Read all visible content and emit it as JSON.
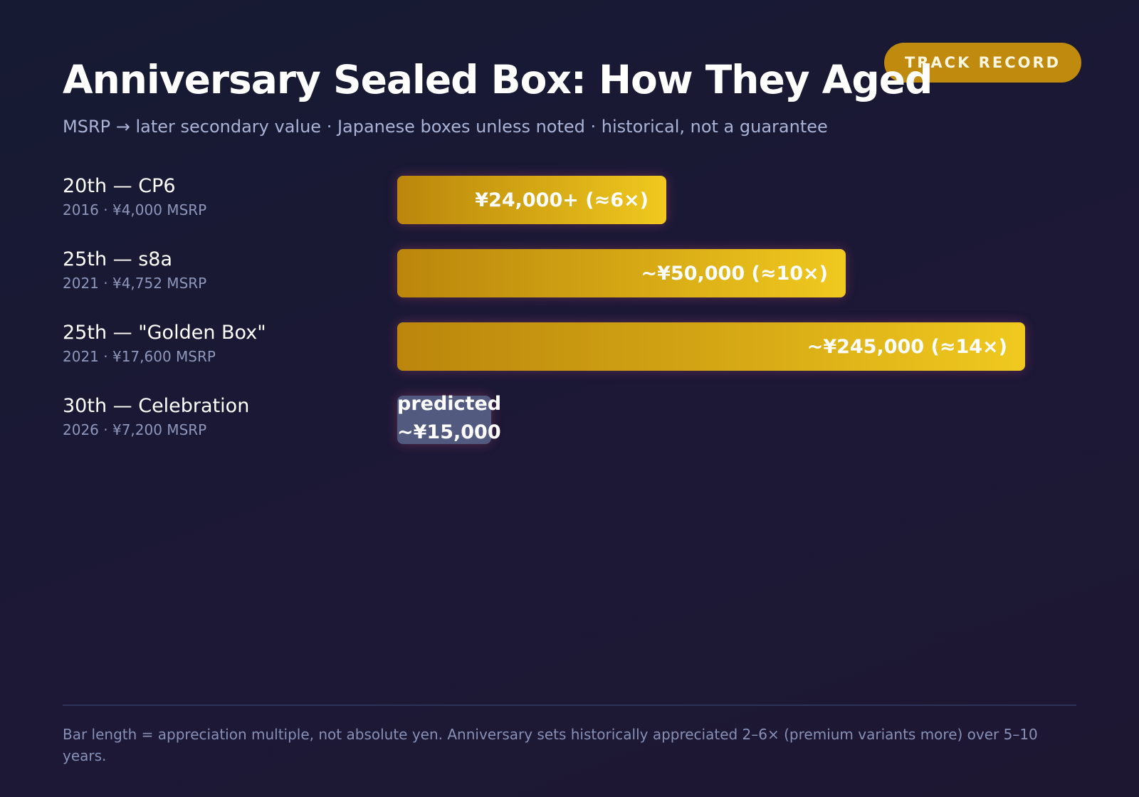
{
  "badge": "TRACK RECORD",
  "colors": {
    "background": "#181a33",
    "bar_gold_start": "#bb860c",
    "bar_gold_end": "#f0c91f",
    "predicted_bar": "#525a80",
    "badge": "#bf8a0e",
    "subtitle_text": "#aab3d6",
    "meta_text": "#8e97bb"
  },
  "chart_data": {
    "type": "bar",
    "orientation": "horizontal",
    "title": "Anniversary Sealed Box: How They Aged",
    "subtitle": "MSRP → later secondary value · Japanese boxes unless noted · historical, not a guarantee",
    "xlabel": "",
    "ylabel": "",
    "grid": false,
    "xlim": [
      0,
      14
    ],
    "categories": [
      "20th — CP6",
      "25th — s8a",
      "25th — \"Golden Box\"",
      "30th — Celebration"
    ],
    "rows": [
      {
        "name": "20th — CP6",
        "meta": "2016 · ¥4,000 MSRP",
        "value_label": "¥24,000+ (≈6×)",
        "multiple": 6,
        "predicted": false
      },
      {
        "name": "25th — s8a",
        "meta": "2021 · ¥4,752 MSRP",
        "value_label": "~¥50,000 (≈10×)",
        "multiple": 10,
        "predicted": false
      },
      {
        "name": "25th — \"Golden Box\"",
        "meta": "2021 · ¥17,600 MSRP",
        "value_label": "~¥245,000 (≈14×)",
        "multiple": 14,
        "predicted": false
      },
      {
        "name": "30th — Celebration",
        "meta": "2026 · ¥7,200 MSRP",
        "value_label": "predicted ~¥15,000",
        "multiple": 2.1,
        "predicted": true
      }
    ],
    "footnote": "Bar length = appreciation multiple, not absolute yen. Anniversary sets historically appreciated 2–6× (premium variants more) over 5–10 years."
  }
}
